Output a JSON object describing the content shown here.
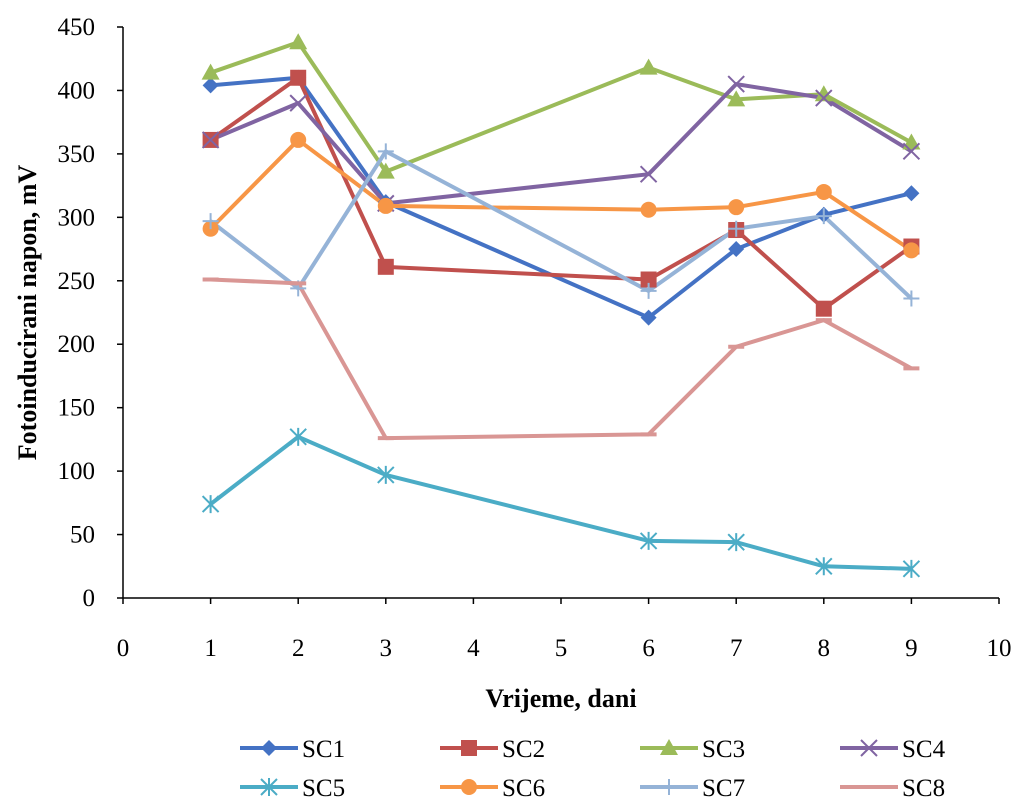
{
  "chart_data": {
    "type": "line",
    "title": "",
    "xlabel": "Vrijeme, dani",
    "ylabel": "Fotoinducirani napon, mV",
    "xlim": [
      0,
      10
    ],
    "ylim": [
      0,
      450
    ],
    "xticks": [
      0,
      1,
      2,
      3,
      4,
      5,
      6,
      7,
      8,
      9,
      10
    ],
    "yticks": [
      0,
      50,
      100,
      150,
      200,
      250,
      300,
      350,
      400,
      450
    ],
    "grid": false,
    "legend_position": "bottom",
    "x": [
      1,
      2,
      3,
      6,
      7,
      8,
      9
    ],
    "series": [
      {
        "name": "SC1",
        "color": "#4472C4",
        "marker": "diamond",
        "values": [
          404,
          410,
          312,
          221,
          275,
          302,
          319
        ]
      },
      {
        "name": "SC2",
        "color": "#C0504D",
        "marker": "square",
        "values": [
          361,
          410,
          261,
          251,
          290,
          228,
          277
        ]
      },
      {
        "name": "SC3",
        "color": "#9BBB59",
        "marker": "triangle",
        "values": [
          414,
          438,
          336,
          418,
          393,
          397,
          359
        ]
      },
      {
        "name": "SC4",
        "color": "#8064A2",
        "marker": "x",
        "values": [
          361,
          390,
          311,
          334,
          405,
          394,
          352
        ]
      },
      {
        "name": "SC5",
        "color": "#4BACC6",
        "marker": "star",
        "values": [
          74,
          127,
          97,
          45,
          44,
          25,
          23
        ]
      },
      {
        "name": "SC6",
        "color": "#F79646",
        "marker": "circle",
        "values": [
          291,
          361,
          309,
          306,
          308,
          320,
          274
        ]
      },
      {
        "name": "SC7",
        "color": "#95B3D7",
        "marker": "plus",
        "values": [
          297,
          244,
          352,
          242,
          291,
          301,
          236
        ]
      },
      {
        "name": "SC8",
        "color": "#D99694",
        "marker": "dash",
        "values": [
          251,
          248,
          126,
          129,
          198,
          219,
          181
        ]
      }
    ]
  }
}
